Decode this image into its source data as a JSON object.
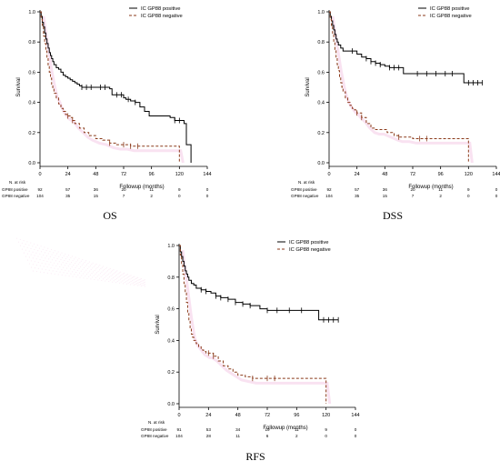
{
  "legend": {
    "positive_label": "IC GP88 positive",
    "negative_label": "IC GP88 negative"
  },
  "axis": {
    "ylabel": "Survival",
    "xlabel": "Followup (months)",
    "x_ticks": [
      "0",
      "24",
      "48",
      "72",
      "96",
      "120",
      "144"
    ],
    "y_ticks": [
      "0.0",
      "0.2",
      "0.4",
      "0.6",
      "0.8",
      "1.0"
    ]
  },
  "risk_table": {
    "header": "N. at risk",
    "row_labels": [
      "GP88 positive",
      "GP88 negative"
    ]
  },
  "colors": {
    "positive": "#000000",
    "negative": "#8b3a1a",
    "ghost_pink": "#f4c6e3"
  },
  "chart_data": [
    {
      "type": "line",
      "subtype": "kaplan-meier",
      "caption": "OS",
      "xlim": [
        0,
        144
      ],
      "ylim": [
        0,
        1.0
      ],
      "legend_position": "top-right",
      "series": [
        {
          "name": "IC GP88 positive",
          "x": [
            0,
            1,
            2,
            3,
            4,
            5,
            6,
            7,
            8,
            9,
            10,
            11,
            12,
            14,
            16,
            18,
            20,
            22,
            24,
            26,
            28,
            30,
            32,
            34,
            36,
            38,
            40,
            44,
            48,
            52,
            56,
            60,
            62,
            66,
            70,
            72,
            74,
            76,
            78,
            82,
            86,
            90,
            94,
            100,
            106,
            112,
            116,
            118,
            120,
            124,
            126,
            130
          ],
          "y": [
            1.0,
            0.97,
            0.93,
            0.9,
            0.86,
            0.82,
            0.79,
            0.76,
            0.73,
            0.71,
            0.69,
            0.67,
            0.65,
            0.63,
            0.62,
            0.6,
            0.58,
            0.57,
            0.56,
            0.55,
            0.54,
            0.53,
            0.52,
            0.51,
            0.5,
            0.5,
            0.5,
            0.5,
            0.5,
            0.5,
            0.5,
            0.49,
            0.45,
            0.45,
            0.45,
            0.43,
            0.42,
            0.42,
            0.41,
            0.4,
            0.37,
            0.34,
            0.31,
            0.31,
            0.31,
            0.3,
            0.28,
            0.28,
            0.28,
            0.26,
            0.12,
            0.0
          ],
          "censor_x": [
            36,
            40,
            44,
            52,
            56,
            66,
            70,
            76,
            82,
            116,
            120
          ]
        },
        {
          "name": "IC GP88 negative",
          "x": [
            0,
            1,
            2,
            3,
            4,
            5,
            6,
            7,
            8,
            9,
            10,
            11,
            12,
            14,
            16,
            18,
            20,
            22,
            24,
            26,
            28,
            30,
            34,
            38,
            42,
            48,
            54,
            60,
            66,
            72,
            78,
            84,
            90,
            100,
            110,
            118,
            120
          ],
          "y": [
            1.0,
            0.95,
            0.9,
            0.84,
            0.79,
            0.74,
            0.69,
            0.64,
            0.6,
            0.56,
            0.52,
            0.49,
            0.46,
            0.43,
            0.39,
            0.36,
            0.34,
            0.32,
            0.31,
            0.3,
            0.28,
            0.26,
            0.23,
            0.2,
            0.18,
            0.16,
            0.15,
            0.13,
            0.12,
            0.12,
            0.11,
            0.11,
            0.11,
            0.11,
            0.11,
            0.11,
            0.0
          ],
          "censor_x": [
            24,
            28,
            60,
            72,
            78,
            84
          ]
        }
      ],
      "risk_times": [
        "0",
        "24",
        "48",
        "72",
        "96",
        "120",
        "144"
      ],
      "risk_positive": [
        "92",
        "57",
        "36",
        "20",
        "11",
        "9",
        "0"
      ],
      "risk_negative": [
        "104",
        "35",
        "15",
        "7",
        "2",
        "0",
        "0"
      ]
    },
    {
      "type": "line",
      "subtype": "kaplan-meier",
      "caption": "DSS",
      "xlim": [
        0,
        144
      ],
      "ylim": [
        0,
        1.0
      ],
      "legend_position": "top-right",
      "series": [
        {
          "name": "IC GP88 positive",
          "x": [
            0,
            1,
            2,
            3,
            4,
            5,
            6,
            7,
            8,
            10,
            12,
            14,
            16,
            20,
            24,
            28,
            32,
            36,
            40,
            44,
            48,
            52,
            56,
            60,
            64,
            70,
            76,
            84,
            92,
            100,
            106,
            110,
            116,
            120,
            124,
            128,
            132
          ],
          "y": [
            1.0,
            0.97,
            0.94,
            0.91,
            0.88,
            0.85,
            0.82,
            0.8,
            0.78,
            0.76,
            0.74,
            0.74,
            0.74,
            0.74,
            0.72,
            0.7,
            0.69,
            0.67,
            0.66,
            0.65,
            0.64,
            0.63,
            0.63,
            0.63,
            0.59,
            0.59,
            0.59,
            0.59,
            0.59,
            0.59,
            0.59,
            0.59,
            0.53,
            0.53,
            0.53,
            0.53,
            0.53
          ],
          "censor_x": [
            20,
            32,
            36,
            40,
            44,
            52,
            56,
            60,
            76,
            84,
            92,
            100,
            106,
            120,
            124,
            128,
            132
          ]
        },
        {
          "name": "IC GP88 negative",
          "x": [
            0,
            1,
            2,
            3,
            4,
            5,
            6,
            7,
            8,
            9,
            10,
            11,
            12,
            14,
            16,
            18,
            20,
            22,
            24,
            28,
            32,
            36,
            40,
            44,
            50,
            56,
            60,
            66,
            72,
            80,
            90,
            100,
            110,
            118,
            120
          ],
          "y": [
            1.0,
            0.95,
            0.9,
            0.85,
            0.8,
            0.75,
            0.7,
            0.65,
            0.61,
            0.57,
            0.53,
            0.5,
            0.47,
            0.43,
            0.4,
            0.38,
            0.36,
            0.35,
            0.33,
            0.3,
            0.26,
            0.23,
            0.22,
            0.22,
            0.2,
            0.18,
            0.17,
            0.17,
            0.16,
            0.16,
            0.16,
            0.16,
            0.16,
            0.16,
            0.0
          ],
          "censor_x": [
            24,
            28,
            60,
            78,
            84
          ]
        }
      ],
      "risk_times": [
        "0",
        "24",
        "48",
        "72",
        "96",
        "120",
        "144"
      ],
      "risk_positive": [
        "92",
        "57",
        "36",
        "20",
        "11",
        "9",
        "0"
      ],
      "risk_negative": [
        "104",
        "35",
        "15",
        "7",
        "2",
        "0",
        "0"
      ]
    },
    {
      "type": "line",
      "subtype": "kaplan-meier",
      "caption": "RFS",
      "xlim": [
        0,
        144
      ],
      "ylim": [
        0,
        1.0
      ],
      "legend_position": "top-right",
      "series": [
        {
          "name": "IC GP88 positive",
          "x": [
            0,
            1,
            2,
            3,
            4,
            5,
            6,
            7,
            8,
            10,
            12,
            14,
            18,
            22,
            26,
            30,
            34,
            40,
            46,
            52,
            58,
            62,
            66,
            72,
            80,
            90,
            100,
            108,
            114,
            118,
            122,
            126,
            130
          ],
          "y": [
            1.0,
            0.96,
            0.93,
            0.9,
            0.87,
            0.84,
            0.82,
            0.8,
            0.78,
            0.76,
            0.75,
            0.73,
            0.72,
            0.71,
            0.7,
            0.68,
            0.67,
            0.66,
            0.64,
            0.63,
            0.62,
            0.62,
            0.6,
            0.59,
            0.59,
            0.59,
            0.59,
            0.59,
            0.53,
            0.53,
            0.53,
            0.53,
            0.53
          ],
          "censor_x": [
            18,
            22,
            30,
            34,
            40,
            46,
            52,
            58,
            72,
            80,
            90,
            100,
            118,
            122,
            126,
            130
          ]
        },
        {
          "name": "IC GP88 negative",
          "x": [
            0,
            1,
            2,
            3,
            4,
            5,
            6,
            7,
            8,
            9,
            10,
            11,
            12,
            14,
            16,
            18,
            20,
            22,
            24,
            28,
            32,
            36,
            40,
            44,
            48,
            54,
            60,
            66,
            72,
            84,
            96,
            110,
            118,
            120
          ],
          "y": [
            1.0,
            0.94,
            0.88,
            0.82,
            0.76,
            0.7,
            0.64,
            0.58,
            0.53,
            0.48,
            0.44,
            0.42,
            0.4,
            0.38,
            0.36,
            0.34,
            0.33,
            0.32,
            0.32,
            0.3,
            0.27,
            0.24,
            0.22,
            0.2,
            0.18,
            0.17,
            0.16,
            0.16,
            0.16,
            0.16,
            0.16,
            0.16,
            0.16,
            0.0
          ],
          "censor_x": [
            24,
            28,
            60,
            72,
            78
          ]
        }
      ],
      "risk_times": [
        "0",
        "24",
        "48",
        "72",
        "96",
        "120",
        "144"
      ],
      "risk_positive": [
        "91",
        "53",
        "34",
        "19",
        "11",
        "9",
        "0"
      ],
      "risk_negative": [
        "104",
        "28",
        "11",
        "6",
        "2",
        "0",
        "0"
      ]
    }
  ]
}
